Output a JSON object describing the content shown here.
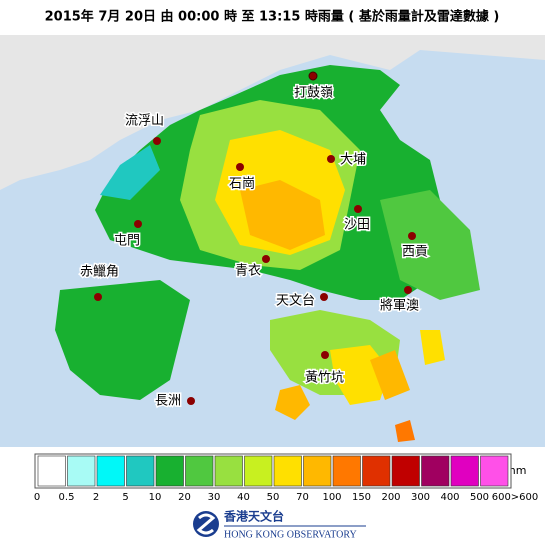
{
  "header": {
    "title": "2015年 7月 20日 由 00:00 時 至 13:15 時雨量 ( 基於雨量計及雷達數據 )"
  },
  "places": [
    "打鼓嶺",
    "流浮山",
    "大埔",
    "石崗",
    "沙田",
    "屯門",
    "西貢",
    "青衣",
    "赤鱲角",
    "天文台",
    "將軍澳",
    "黃竹坑",
    "長洲"
  ],
  "legend": {
    "unit": "mm",
    "colors": [
      "#ffffff",
      "#a8fbf5",
      "#00f8f8",
      "#20c8c0",
      "#18b030",
      "#50c840",
      "#98e040",
      "#c8f020",
      "#ffe000",
      "#ffb800",
      "#ff7800",
      "#e03000",
      "#c00000",
      "#a00060",
      "#e000c0",
      "#ff50e8"
    ],
    "labels": [
      "0",
      "0.5",
      "2",
      "5",
      "10",
      "20",
      "30",
      "40",
      "50",
      "70",
      "100",
      "150",
      "200",
      "300",
      "400",
      "500",
      "600>600"
    ]
  },
  "logo": {
    "chinese": "香港天文台",
    "english": "HONG KONG OBSERVATORY"
  }
}
